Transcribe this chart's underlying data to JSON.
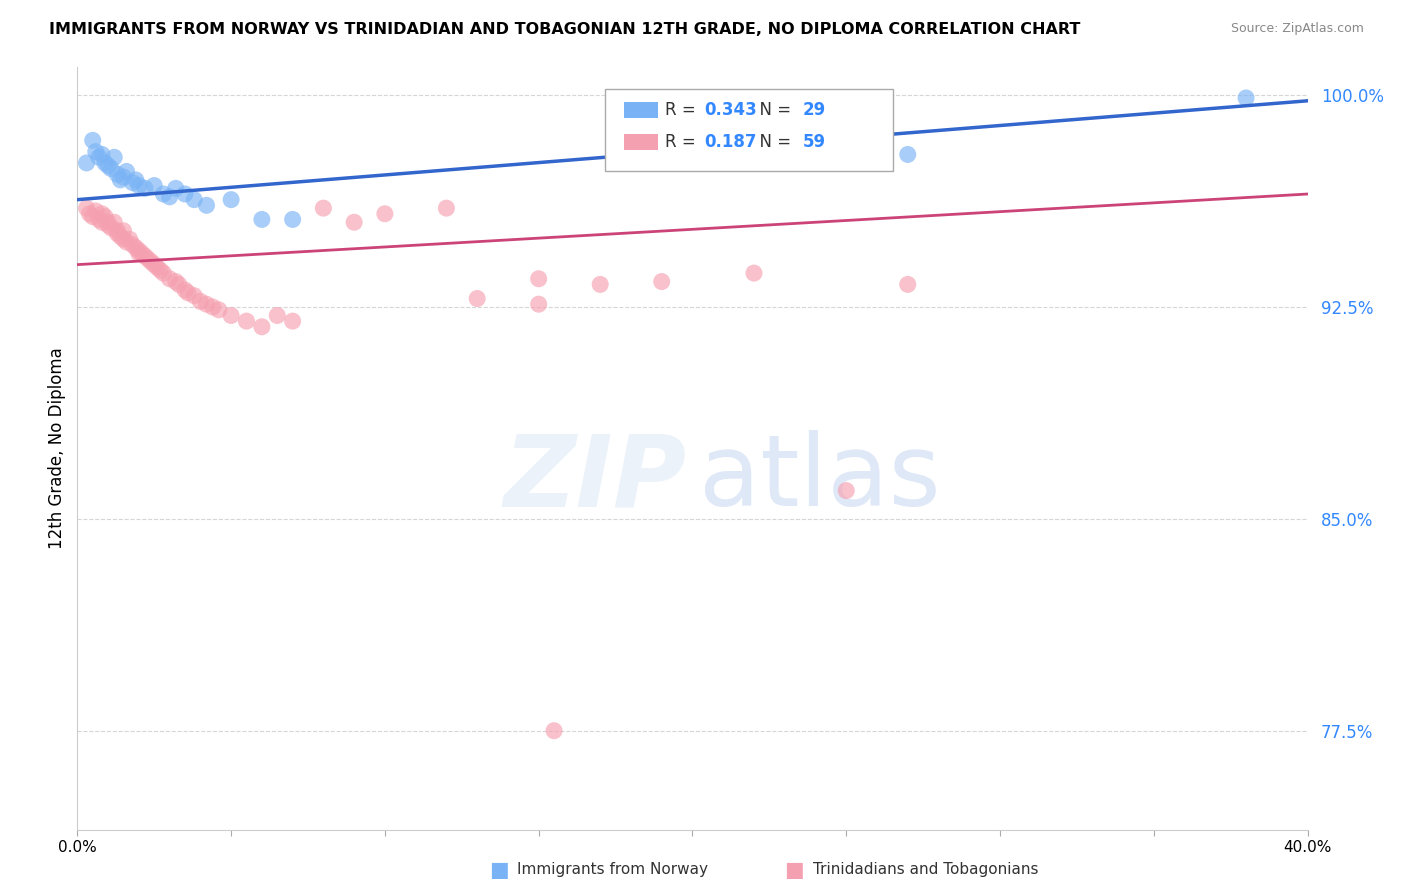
{
  "title": "IMMIGRANTS FROM NORWAY VS TRINIDADIAN AND TOBAGONIAN 12TH GRADE, NO DIPLOMA CORRELATION CHART",
  "source": "Source: ZipAtlas.com",
  "ylabel": "12th Grade, No Diploma",
  "xlim": [
    0.0,
    0.4
  ],
  "ylim": [
    0.74,
    1.01
  ],
  "yticks": [
    0.775,
    0.85,
    0.925,
    1.0
  ],
  "ytick_labels": [
    "77.5%",
    "85.0%",
    "92.5%",
    "100.0%"
  ],
  "norway_R": 0.343,
  "norway_N": 29,
  "trinidad_R": 0.187,
  "trinidad_N": 59,
  "norway_color": "#7ab3f5",
  "trinidad_color": "#f5a0b0",
  "trendline_norway_color": "#3366cc",
  "trendline_trinidad_color": "#cc4477",
  "background_color": "#ffffff",
  "grid_color": "#cccccc",
  "norway_x": [
    0.003,
    0.005,
    0.006,
    0.007,
    0.008,
    0.009,
    0.01,
    0.011,
    0.012,
    0.013,
    0.014,
    0.015,
    0.016,
    0.018,
    0.019,
    0.02,
    0.022,
    0.025,
    0.028,
    0.03,
    0.032,
    0.035,
    0.038,
    0.042,
    0.05,
    0.06,
    0.07,
    0.27,
    0.38
  ],
  "norway_y": [
    0.976,
    0.984,
    0.98,
    0.978,
    0.979,
    0.976,
    0.975,
    0.974,
    0.978,
    0.972,
    0.97,
    0.971,
    0.973,
    0.969,
    0.97,
    0.968,
    0.967,
    0.968,
    0.965,
    0.964,
    0.967,
    0.965,
    0.963,
    0.961,
    0.963,
    0.956,
    0.956,
    0.979,
    0.999
  ],
  "trinidad_x": [
    0.003,
    0.004,
    0.005,
    0.006,
    0.007,
    0.008,
    0.008,
    0.009,
    0.01,
    0.01,
    0.011,
    0.012,
    0.013,
    0.013,
    0.014,
    0.015,
    0.015,
    0.016,
    0.017,
    0.018,
    0.019,
    0.02,
    0.02,
    0.021,
    0.022,
    0.023,
    0.024,
    0.025,
    0.026,
    0.027,
    0.028,
    0.03,
    0.032,
    0.033,
    0.035,
    0.036,
    0.038,
    0.04,
    0.042,
    0.044,
    0.046,
    0.05,
    0.055,
    0.06,
    0.065,
    0.07,
    0.08,
    0.09,
    0.1,
    0.12,
    0.15,
    0.17,
    0.19,
    0.22,
    0.13,
    0.15,
    0.25,
    0.27,
    0.155
  ],
  "trinidad_y": [
    0.96,
    0.958,
    0.957,
    0.959,
    0.956,
    0.958,
    0.955,
    0.957,
    0.955,
    0.954,
    0.953,
    0.955,
    0.951,
    0.952,
    0.95,
    0.952,
    0.949,
    0.948,
    0.949,
    0.947,
    0.946,
    0.945,
    0.944,
    0.944,
    0.943,
    0.942,
    0.941,
    0.94,
    0.939,
    0.938,
    0.937,
    0.935,
    0.934,
    0.933,
    0.931,
    0.93,
    0.929,
    0.927,
    0.926,
    0.925,
    0.924,
    0.922,
    0.92,
    0.918,
    0.922,
    0.92,
    0.96,
    0.955,
    0.958,
    0.96,
    0.935,
    0.933,
    0.934,
    0.937,
    0.928,
    0.926,
    0.86,
    0.933,
    0.775
  ],
  "norway_trend_x": [
    0.0,
    0.4
  ],
  "norway_trend_y": [
    0.963,
    0.998
  ],
  "trinidad_trend_x": [
    0.0,
    0.4
  ],
  "trinidad_trend_y": [
    0.94,
    0.965
  ]
}
